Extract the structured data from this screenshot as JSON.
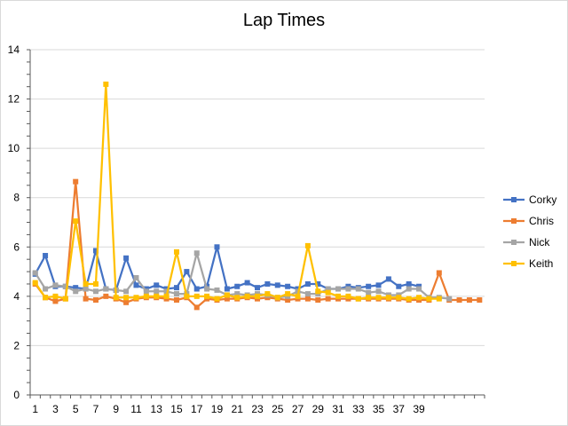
{
  "chart_data": {
    "type": "line",
    "title": "Lap Times",
    "xlabel": "",
    "ylabel": "",
    "ylim": [
      0,
      14
    ],
    "yticks": [
      0,
      2,
      4,
      6,
      8,
      10,
      12,
      14
    ],
    "x": [
      1,
      2,
      3,
      4,
      5,
      6,
      7,
      8,
      9,
      10,
      11,
      12,
      13,
      14,
      15,
      16,
      17,
      18,
      19,
      20,
      21,
      22,
      23,
      24,
      25,
      26,
      27,
      28,
      29,
      30,
      31,
      32,
      33,
      34,
      35,
      36,
      37,
      38,
      39,
      40,
      41,
      42,
      43,
      44,
      45
    ],
    "xtick_labels": [
      "1",
      "3",
      "5",
      "7",
      "9",
      "11",
      "13",
      "15",
      "17",
      "19",
      "21",
      "23",
      "25",
      "27",
      "29",
      "31",
      "33",
      "35",
      "37",
      "39"
    ],
    "grid": "horizontal",
    "legend_position": "right",
    "series": [
      {
        "name": "Corky",
        "color": "#4472c4",
        "values": [
          4.9,
          5.65,
          4.4,
          4.4,
          4.35,
          4.3,
          5.85,
          4.3,
          4.25,
          5.55,
          4.45,
          4.3,
          4.45,
          4.3,
          4.35,
          5.0,
          4.3,
          4.4,
          6.0,
          4.3,
          4.4,
          4.55,
          4.35,
          4.5,
          4.45,
          4.4,
          4.3,
          4.5,
          4.5,
          4.3,
          4.3,
          4.4,
          4.35,
          4.4,
          4.45,
          4.7,
          4.4,
          4.5,
          4.4,
          null,
          null,
          null,
          null,
          null,
          null
        ]
      },
      {
        "name": "Chris",
        "color": "#ed7d31",
        "values": [
          4.5,
          3.95,
          3.8,
          3.9,
          8.65,
          3.9,
          3.85,
          4.0,
          3.9,
          3.75,
          3.9,
          3.95,
          3.95,
          3.9,
          3.85,
          3.95,
          3.55,
          3.9,
          3.85,
          3.9,
          3.9,
          3.95,
          3.9,
          3.95,
          3.9,
          3.85,
          3.9,
          3.9,
          3.85,
          3.9,
          3.9,
          3.9,
          3.9,
          3.9,
          3.9,
          3.9,
          3.9,
          3.85,
          3.85,
          3.85,
          4.95,
          3.85,
          3.85,
          3.85,
          3.85
        ]
      },
      {
        "name": "Nick",
        "color": "#a5a5a5",
        "values": [
          4.95,
          4.3,
          4.45,
          4.4,
          4.2,
          4.3,
          4.2,
          4.3,
          4.25,
          4.2,
          4.75,
          4.2,
          4.2,
          4.2,
          4.1,
          4.1,
          5.75,
          4.3,
          4.25,
          4.05,
          4.1,
          4.05,
          4.1,
          4.05,
          3.95,
          4.0,
          4.2,
          4.1,
          4.1,
          4.3,
          4.3,
          4.3,
          4.3,
          4.15,
          4.2,
          4.05,
          4.05,
          4.3,
          4.3,
          3.95,
          3.95,
          3.9,
          null,
          null,
          null
        ]
      },
      {
        "name": "Keith",
        "color": "#ffc000",
        "values": [
          4.55,
          3.95,
          4.0,
          3.9,
          7.05,
          4.5,
          4.5,
          12.6,
          3.95,
          3.95,
          3.95,
          4.0,
          4.0,
          4.0,
          5.8,
          4.0,
          4.0,
          4.0,
          3.9,
          4.05,
          3.95,
          4.0,
          4.0,
          4.1,
          3.95,
          4.1,
          4.0,
          6.05,
          4.2,
          4.15,
          4.0,
          4.0,
          3.9,
          3.95,
          3.95,
          3.95,
          3.95,
          3.9,
          3.95,
          3.9,
          3.9,
          null,
          null,
          null,
          null
        ]
      }
    ]
  }
}
